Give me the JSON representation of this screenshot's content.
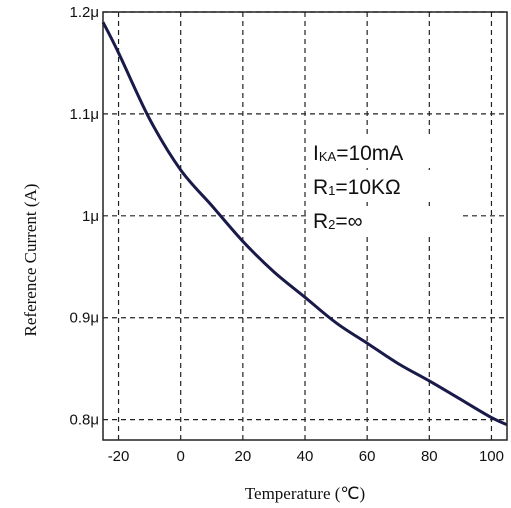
{
  "chart_data": {
    "type": "line",
    "title": "",
    "xlabel": "Temperature (℃)",
    "ylabel": "Reference Current (A)",
    "xlim": [
      -25,
      105
    ],
    "ylim": [
      0.78,
      1.2
    ],
    "x_ticks": [
      -20,
      0,
      20,
      40,
      60,
      80,
      100
    ],
    "x_tick_labels": [
      "-20",
      "0",
      "20",
      "40",
      "60",
      "80",
      "100"
    ],
    "y_ticks": [
      0.8,
      0.9,
      1.0,
      1.1,
      1.2
    ],
    "y_tick_labels": [
      "0.8μ",
      "0.9μ",
      "1μ",
      "1.1μ",
      "1.2μ"
    ],
    "grid": true,
    "series": [
      {
        "x": [
          -25,
          -20,
          -10,
          0,
          10,
          20,
          30,
          40,
          50,
          60,
          70,
          80,
          90,
          100,
          105
        ],
        "y": [
          1.19,
          1.16,
          1.095,
          1.045,
          1.01,
          0.975,
          0.945,
          0.92,
          0.895,
          0.875,
          0.855,
          0.838,
          0.82,
          0.802,
          0.795
        ],
        "color": "#1a1a4a"
      }
    ],
    "annotations": [
      {
        "main": "I",
        "sub": "KA",
        "rest": "=10mA"
      },
      {
        "main": "R",
        "sub": "1",
        "rest": "=10KΩ"
      },
      {
        "main": "R",
        "sub": "2",
        "rest": "=∞"
      }
    ]
  }
}
